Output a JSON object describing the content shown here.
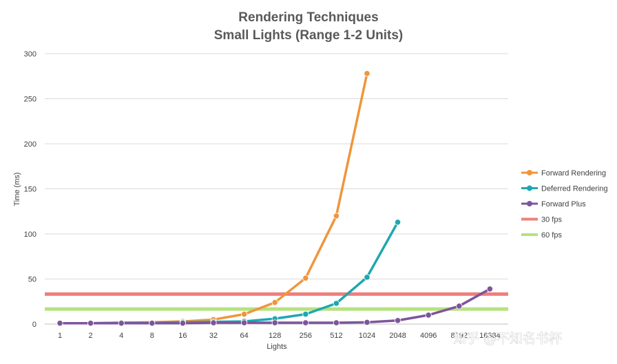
{
  "chart_data": {
    "type": "line",
    "title": "Rendering Techniques",
    "subtitle": "Small Lights (Range 1-2 Units)",
    "xlabel": "Lights",
    "ylabel": "Time (ms)",
    "ylim": [
      0,
      300
    ],
    "yticks": [
      "0",
      "50",
      "100",
      "150",
      "200",
      "250",
      "300"
    ],
    "grid": true,
    "legend_position": "right",
    "categories": [
      "1",
      "2",
      "4",
      "8",
      "16",
      "32",
      "64",
      "128",
      "256",
      "512",
      "1024",
      "2048",
      "4096",
      "8192",
      "16384"
    ],
    "series": [
      {
        "name": "Forward Rendering",
        "color": "#f0953b",
        "values": [
          1,
          1,
          1.5,
          2,
          3,
          5,
          11,
          24,
          51,
          120,
          278,
          null,
          null,
          null,
          null
        ]
      },
      {
        "name": "Deferred Rendering",
        "color": "#1ea7b1",
        "values": [
          1,
          1,
          1.5,
          1.5,
          2,
          2.5,
          3,
          6,
          11,
          23,
          52,
          113,
          null,
          null,
          null
        ]
      },
      {
        "name": "Forward Plus",
        "color": "#7d559b",
        "values": [
          1,
          1,
          1,
          1,
          1,
          1.5,
          1.5,
          1.5,
          1.5,
          1.5,
          2,
          4,
          10,
          20,
          39
        ]
      }
    ],
    "reference_lines": [
      {
        "name": "30 fps",
        "color": "#ef7f7b",
        "value": 33.3
      },
      {
        "name": "60 fps",
        "color": "#b5e27e",
        "value": 16.7
      }
    ]
  },
  "watermark": "知乎 @不知名书杯"
}
